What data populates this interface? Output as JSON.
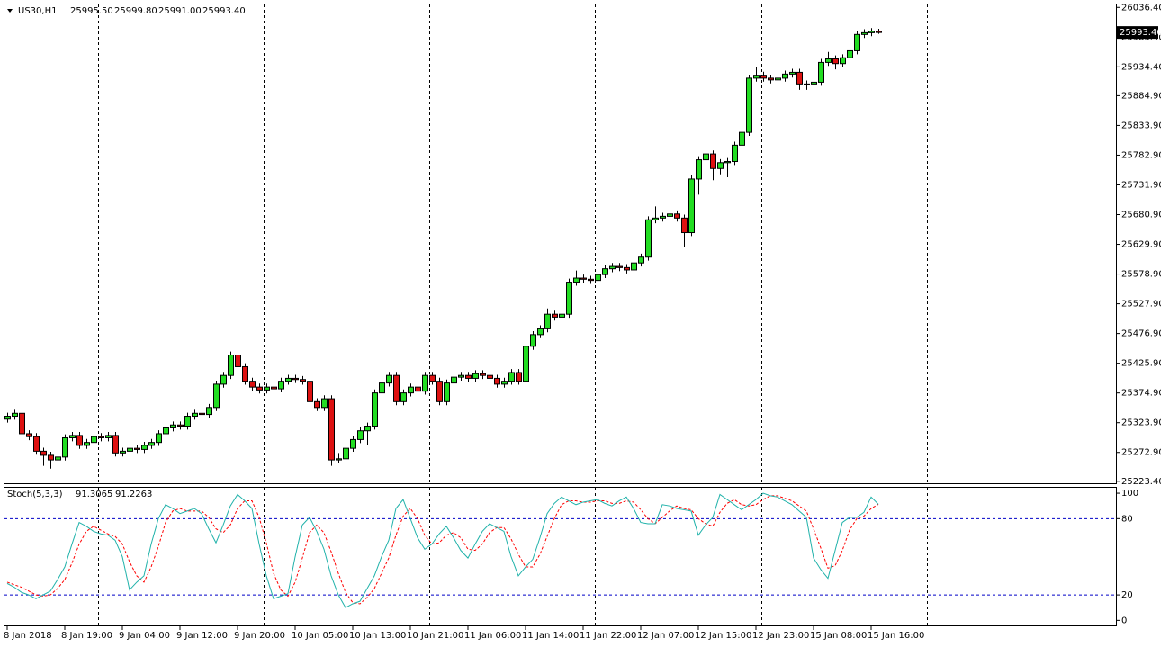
{
  "chart_data": [
    {
      "type": "candlestick",
      "symbol": "US30,H1",
      "header_values": [
        "25995.50",
        "25999.80",
        "25991.00",
        "25993.40"
      ],
      "up_color": "#22dd22",
      "down_color": "#dd1111",
      "ylim": [
        25220,
        26043
      ],
      "yticks": [
        {
          "value": 26036.4,
          "label": "26036.40"
        },
        {
          "value": 25985.4,
          "label": "25985.40"
        },
        {
          "value": 25934.4,
          "label": "25934.40"
        },
        {
          "value": 25884.9,
          "label": "25884.90"
        },
        {
          "value": 25833.9,
          "label": "25833.90"
        },
        {
          "value": 25782.9,
          "label": "25782.90"
        },
        {
          "value": 25731.9,
          "label": "25731.90"
        },
        {
          "value": 25680.9,
          "label": "25680.90"
        },
        {
          "value": 25629.9,
          "label": "25629.90"
        },
        {
          "value": 25578.9,
          "label": "25578.90"
        },
        {
          "value": 25527.9,
          "label": "25527.90"
        },
        {
          "value": 25476.9,
          "label": "25476.90"
        },
        {
          "value": 25425.9,
          "label": "25425.90"
        },
        {
          "value": 25374.9,
          "label": "25374.90"
        },
        {
          "value": 25323.9,
          "label": "25323.90"
        },
        {
          "value": 25272.9,
          "label": "25272.90"
        },
        {
          "value": 25223.4,
          "label": "25223.40"
        }
      ],
      "last_price": {
        "value": 25993.4,
        "label": "25993.40"
      },
      "categories": [
        "8 Jan 2018",
        null,
        null,
        null,
        null,
        null,
        null,
        null,
        "8 Jan 19:00",
        null,
        null,
        null,
        null,
        null,
        null,
        null,
        "9 Jan 04:00",
        null,
        null,
        null,
        null,
        null,
        null,
        null,
        "9 Jan 12:00",
        null,
        null,
        null,
        null,
        null,
        null,
        null,
        "9 Jan 20:00",
        null,
        null,
        null,
        null,
        null,
        null,
        null,
        "10 Jan 05:00",
        null,
        null,
        null,
        null,
        null,
        null,
        null,
        "10 Jan 13:00",
        null,
        null,
        null,
        null,
        null,
        null,
        null,
        "10 Jan 21:00",
        null,
        null,
        null,
        null,
        null,
        null,
        null,
        "11 Jan 06:00",
        null,
        null,
        null,
        null,
        null,
        null,
        null,
        "11 Jan 14:00",
        null,
        null,
        null,
        null,
        null,
        null,
        null,
        "11 Jan 22:00",
        null,
        null,
        null,
        null,
        null,
        null,
        null,
        "12 Jan 07:00",
        null,
        null,
        null,
        null,
        null,
        null,
        null,
        "12 Jan 15:00",
        null,
        null,
        null,
        null,
        null,
        null,
        null,
        "12 Jan 23:00",
        null,
        null,
        null,
        null,
        null,
        null,
        null,
        "15 Jan 08:00",
        null,
        null,
        null,
        null,
        null,
        null,
        null,
        "15 Jan 16:00",
        null
      ],
      "open": [
        25330,
        25335,
        25340,
        25305,
        25300,
        25275,
        25268,
        25260,
        25265,
        25298,
        25302,
        25285,
        25290,
        25300,
        25298,
        25302,
        25272,
        25275,
        25280,
        25278,
        25285,
        25290,
        25305,
        25315,
        25320,
        25318,
        25335,
        25340,
        25338,
        25350,
        25390,
        25405,
        25440,
        25420,
        25395,
        25385,
        25380,
        25385,
        25382,
        25395,
        25400,
        25398,
        25395,
        25360,
        25350,
        25365,
        25260,
        25262,
        25280,
        25295,
        25310,
        25318,
        25375,
        25392,
        25405,
        25360,
        25375,
        25385,
        25378,
        25405,
        25395,
        25360,
        25392,
        25402,
        25405,
        25400,
        25408,
        25405,
        25400,
        25390,
        25395,
        25410,
        25395,
        25455,
        25475,
        25485,
        25510,
        25505,
        25510,
        25565,
        25572,
        25570,
        25568,
        25578,
        25588,
        25592,
        25590,
        25586,
        25598,
        25608,
        25672,
        25675,
        25678,
        25682,
        25675,
        25650,
        25742,
        25775,
        25785,
        25760,
        25770,
        25772,
        25800,
        25822,
        25915,
        25920,
        25915,
        25912,
        25915,
        25922,
        25925,
        25905,
        25905,
        25908,
        25942,
        25948,
        25940,
        25950,
        25962,
        25990,
        25993,
        25995.5
      ],
      "high": [
        25341,
        25346,
        25346,
        25311,
        25306,
        25281,
        25274,
        25271,
        25304,
        25308,
        25308,
        25296,
        25306,
        25306,
        25308,
        25308,
        25281,
        25286,
        25286,
        25291,
        25296,
        25311,
        25321,
        25326,
        25326,
        25341,
        25346,
        25346,
        25356,
        25396,
        25411,
        25446,
        25446,
        25426,
        25401,
        25391,
        25391,
        25391,
        25401,
        25406,
        25406,
        25404,
        25401,
        25366,
        25371,
        25371,
        25272,
        25286,
        25301,
        25316,
        25324,
        25381,
        25398,
        25411,
        25411,
        25381,
        25391,
        25391,
        25411,
        25411,
        25401,
        25398,
        25420,
        25411,
        25411,
        25414,
        25414,
        25411,
        25406,
        25401,
        25416,
        25416,
        25461,
        25481,
        25491,
        25520,
        25516,
        25516,
        25571,
        25585,
        25578,
        25576,
        25584,
        25594,
        25598,
        25598,
        25596,
        25604,
        25614,
        25678,
        25695,
        25684,
        25690,
        25688,
        25681,
        25748,
        25781,
        25791,
        25791,
        25776,
        25778,
        25806,
        25828,
        25921,
        25935,
        25926,
        25921,
        25921,
        25928,
        25931,
        25931,
        25911,
        25914,
        25948,
        25960,
        25954,
        25956,
        25968,
        25996,
        25999,
        26001,
        25999.8
      ],
      "low": [
        25324,
        25329,
        25299,
        25294,
        25269,
        25250,
        25245,
        25254,
        25259,
        25292,
        25279,
        25279,
        25284,
        25292,
        25292,
        25266,
        25266,
        25269,
        25272,
        25272,
        25279,
        25284,
        25299,
        25309,
        25312,
        25312,
        25329,
        25332,
        25332,
        25344,
        25384,
        25399,
        25414,
        25389,
        25379,
        25374,
        25374,
        25376,
        25376,
        25389,
        25392,
        25389,
        25354,
        25344,
        25344,
        25250,
        25254,
        25256,
        25274,
        25289,
        25285,
        25312,
        25369,
        25386,
        25354,
        25354,
        25369,
        25372,
        25372,
        25389,
        25354,
        25354,
        25386,
        25396,
        25394,
        25394,
        25399,
        25394,
        25384,
        25384,
        25389,
        25389,
        25389,
        25449,
        25469,
        25479,
        25499,
        25499,
        25504,
        25559,
        25564,
        25562,
        25562,
        25572,
        25582,
        25584,
        25580,
        25580,
        25592,
        25602,
        25666,
        25669,
        25672,
        25669,
        25625,
        25644,
        25715,
        25769,
        25740,
        25750,
        25745,
        25766,
        25794,
        25816,
        25909,
        25909,
        25906,
        25906,
        25909,
        25916,
        25895,
        25895,
        25899,
        25902,
        25936,
        25930,
        25934,
        25944,
        25956,
        25984,
        25987,
        25991
      ],
      "close": [
        25335,
        25340,
        25305,
        25300,
        25275,
        25268,
        25260,
        25265,
        25298,
        25302,
        25285,
        25290,
        25300,
        25298,
        25302,
        25272,
        25275,
        25280,
        25278,
        25285,
        25290,
        25305,
        25315,
        25320,
        25318,
        25335,
        25340,
        25338,
        25350,
        25390,
        25405,
        25440,
        25420,
        25395,
        25385,
        25380,
        25385,
        25382,
        25395,
        25400,
        25398,
        25395,
        25360,
        25350,
        25365,
        25260,
        25262,
        25280,
        25295,
        25310,
        25318,
        25375,
        25392,
        25405,
        25360,
        25375,
        25385,
        25378,
        25405,
        25395,
        25360,
        25392,
        25402,
        25405,
        25400,
        25408,
        25405,
        25400,
        25390,
        25395,
        25410,
        25395,
        25455,
        25475,
        25485,
        25510,
        25505,
        25510,
        25565,
        25572,
        25570,
        25568,
        25578,
        25588,
        25592,
        25590,
        25586,
        25598,
        25608,
        25672,
        25675,
        25678,
        25682,
        25675,
        25650,
        25742,
        25775,
        25785,
        25760,
        25770,
        25772,
        25800,
        25822,
        25915,
        25920,
        25915,
        25912,
        25915,
        25922,
        25925,
        25905,
        25905,
        25908,
        25942,
        25948,
        25940,
        25950,
        25962,
        25990,
        25993,
        25995.5,
        25993.4
      ]
    },
    {
      "type": "line",
      "title": "Stoch(5,3,3)",
      "header_values": [
        "91.3065",
        "91.2263"
      ],
      "ylim": [
        -4,
        105
      ],
      "yticks": [
        100,
        80,
        20,
        0
      ],
      "levels": [
        80,
        20
      ],
      "level_color": "#0000c8",
      "series": [
        {
          "color": "#20b2aa",
          "style": "solid",
          "values": [
            29,
            26,
            22,
            20,
            17,
            20,
            23,
            32,
            42,
            60,
            77,
            74,
            70,
            68,
            67,
            63,
            50,
            24,
            30,
            35,
            60,
            80,
            91,
            88,
            84,
            86,
            88,
            84,
            72,
            61,
            75,
            90,
            99,
            94,
            88,
            60,
            35,
            17,
            19,
            21,
            50,
            75,
            81,
            70,
            56,
            35,
            20,
            10,
            13,
            15,
            25,
            35,
            50,
            63,
            88,
            95,
            80,
            65,
            56,
            60,
            68,
            74,
            65,
            55,
            49,
            60,
            70,
            76,
            73,
            70,
            50,
            35,
            42,
            48,
            65,
            84,
            92,
            97,
            94,
            91,
            93,
            94,
            95,
            92,
            90,
            94,
            97,
            88,
            77,
            76,
            76,
            91,
            90,
            88,
            87,
            86,
            67,
            75,
            81,
            99,
            95,
            91,
            87,
            91,
            95,
            100,
            98,
            97,
            94,
            91,
            86,
            81,
            49,
            40,
            33,
            55,
            77,
            81,
            81,
            85,
            97,
            91.3065
          ]
        },
        {
          "color": "#ff0000",
          "style": "dashed",
          "values": [
            30,
            28,
            26,
            23,
            20,
            19,
            20,
            25,
            32,
            45,
            60,
            70,
            74,
            71,
            68,
            66,
            60,
            46,
            35,
            30,
            42,
            58,
            77,
            86,
            88,
            86,
            86,
            86,
            81,
            72,
            69,
            75,
            88,
            94,
            94,
            81,
            61,
            37,
            24,
            19,
            30,
            49,
            69,
            75,
            69,
            54,
            37,
            22,
            14,
            13,
            18,
            25,
            37,
            49,
            67,
            82,
            88,
            80,
            67,
            60,
            61,
            67,
            69,
            65,
            56,
            55,
            60,
            69,
            73,
            73,
            64,
            52,
            42,
            42,
            52,
            66,
            80,
            91,
            94,
            94,
            93,
            93,
            94,
            94,
            92,
            92,
            94,
            93,
            87,
            80,
            76,
            81,
            86,
            90,
            88,
            87,
            80,
            76,
            74,
            85,
            92,
            95,
            91,
            90,
            91,
            95,
            98,
            98,
            96,
            94,
            90,
            86,
            72,
            57,
            41,
            43,
            55,
            71,
            80,
            82,
            88,
            91.2263
          ]
        }
      ]
    }
  ]
}
